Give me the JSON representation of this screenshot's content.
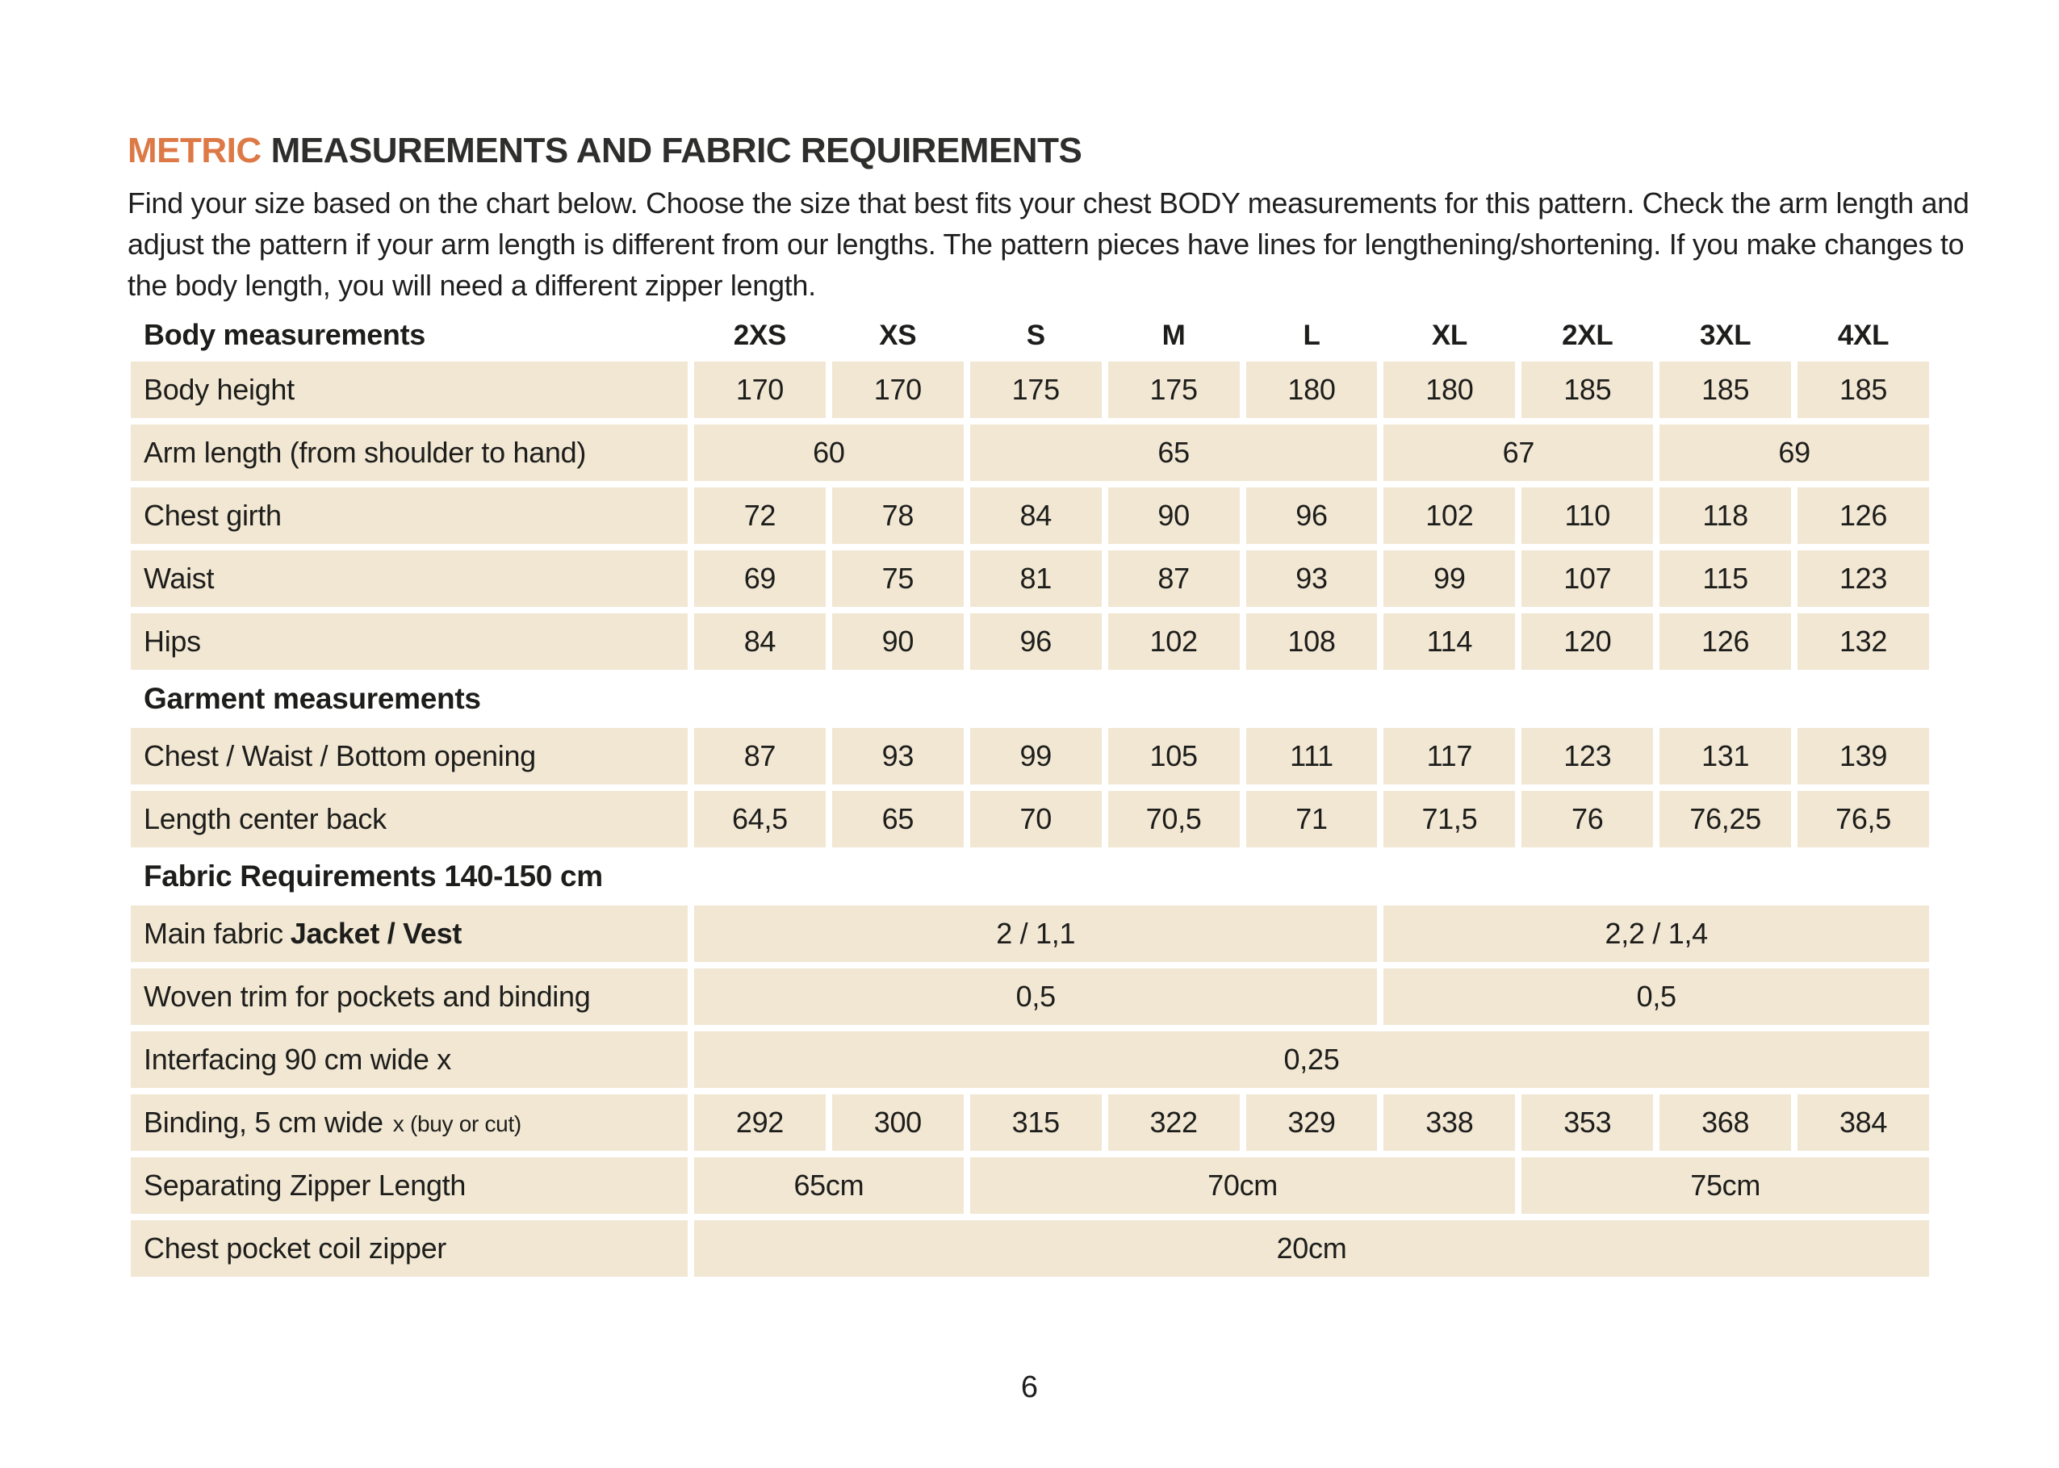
{
  "header": {
    "title_accent": "METRIC",
    "title_rest": "MEASUREMENTS AND FABRIC REQUIREMENTS",
    "intro": "Find your size based on the chart below. Choose the size that best fits your chest BODY measurements for this pattern. Check the arm length and adjust the pattern if your arm length is different from our lengths. The pattern pieces have lines for lengthening/shortening. If you make changes to the body length, you will need a different zipper length."
  },
  "colors": {
    "accent_orange": "#DD7946",
    "cell_beige": "#F1E7D3",
    "text": "#1d1d1b",
    "page_background": "#ffffff"
  },
  "table": {
    "size_headers": {
      "label": "Body measurements",
      "sizes": [
        "2XS",
        "XS",
        "S",
        "M",
        "L",
        "XL",
        "2XL",
        "3XL",
        "4XL"
      ]
    },
    "rows": [
      {
        "kind": "data",
        "label": "Body height",
        "cells": [
          {
            "span": 1,
            "text": "170"
          },
          {
            "span": 1,
            "text": "170"
          },
          {
            "span": 1,
            "text": "175"
          },
          {
            "span": 1,
            "text": "175"
          },
          {
            "span": 1,
            "text": "180"
          },
          {
            "span": 1,
            "text": "180"
          },
          {
            "span": 1,
            "text": "185"
          },
          {
            "span": 1,
            "text": "185"
          },
          {
            "span": 1,
            "text": "185"
          }
        ]
      },
      {
        "kind": "data",
        "label": "Arm length (from shoulder to hand)",
        "cells": [
          {
            "span": 2,
            "text": "60"
          },
          {
            "span": 3,
            "text": "65"
          },
          {
            "span": 2,
            "text": "67"
          },
          {
            "span": 2,
            "text": "69"
          }
        ]
      },
      {
        "kind": "data",
        "label": "Chest girth",
        "cells": [
          {
            "span": 1,
            "text": "72"
          },
          {
            "span": 1,
            "text": "78"
          },
          {
            "span": 1,
            "text": "84"
          },
          {
            "span": 1,
            "text": "90"
          },
          {
            "span": 1,
            "text": "96"
          },
          {
            "span": 1,
            "text": "102"
          },
          {
            "span": 1,
            "text": "110"
          },
          {
            "span": 1,
            "text": "118"
          },
          {
            "span": 1,
            "text": "126"
          }
        ]
      },
      {
        "kind": "data",
        "label": "Waist",
        "cells": [
          {
            "span": 1,
            "text": "69"
          },
          {
            "span": 1,
            "text": "75"
          },
          {
            "span": 1,
            "text": "81"
          },
          {
            "span": 1,
            "text": "87"
          },
          {
            "span": 1,
            "text": "93"
          },
          {
            "span": 1,
            "text": "99"
          },
          {
            "span": 1,
            "text": "107"
          },
          {
            "span": 1,
            "text": "115"
          },
          {
            "span": 1,
            "text": "123"
          }
        ]
      },
      {
        "kind": "data",
        "label": "Hips",
        "cells": [
          {
            "span": 1,
            "text": "84"
          },
          {
            "span": 1,
            "text": "90"
          },
          {
            "span": 1,
            "text": "96"
          },
          {
            "span": 1,
            "text": "102"
          },
          {
            "span": 1,
            "text": "108"
          },
          {
            "span": 1,
            "text": "114"
          },
          {
            "span": 1,
            "text": "120"
          },
          {
            "span": 1,
            "text": "126"
          },
          {
            "span": 1,
            "text": "132"
          }
        ]
      },
      {
        "kind": "section",
        "label": "Garment measurements"
      },
      {
        "kind": "data",
        "label": "Chest / Waist / Bottom opening",
        "cells": [
          {
            "span": 1,
            "text": "87"
          },
          {
            "span": 1,
            "text": "93"
          },
          {
            "span": 1,
            "text": "99"
          },
          {
            "span": 1,
            "text": "105"
          },
          {
            "span": 1,
            "text": "111"
          },
          {
            "span": 1,
            "text": "117"
          },
          {
            "span": 1,
            "text": "123"
          },
          {
            "span": 1,
            "text": "131"
          },
          {
            "span": 1,
            "text": "139"
          }
        ]
      },
      {
        "kind": "data",
        "label": "Length center back",
        "cells": [
          {
            "span": 1,
            "text": "64,5"
          },
          {
            "span": 1,
            "text": "65"
          },
          {
            "span": 1,
            "text": "70"
          },
          {
            "span": 1,
            "text": "70,5"
          },
          {
            "span": 1,
            "text": "71"
          },
          {
            "span": 1,
            "text": "71,5"
          },
          {
            "span": 1,
            "text": "76"
          },
          {
            "span": 1,
            "text": "76,25"
          },
          {
            "span": 1,
            "text": "76,5"
          }
        ]
      },
      {
        "kind": "section",
        "label": "Fabric Requirements 140-150 cm"
      },
      {
        "kind": "data",
        "label": "Main fabric",
        "label_bold": "Jacket / Vest",
        "cells": [
          {
            "span": 5,
            "text": "2 / 1,1"
          },
          {
            "span": 4,
            "text": "2,2 / 1,4"
          }
        ]
      },
      {
        "kind": "data",
        "label": "Woven trim for pockets and binding",
        "cells": [
          {
            "span": 5,
            "text": "0,5"
          },
          {
            "span": 4,
            "text": "0,5"
          }
        ]
      },
      {
        "kind": "data",
        "label": "Interfacing  90 cm wide x",
        "cells": [
          {
            "span": 9,
            "text": "0,25"
          }
        ]
      },
      {
        "kind": "data",
        "label": "Binding, 5 cm wide",
        "label_small": "x (buy or cut)",
        "cells": [
          {
            "span": 1,
            "text": "292"
          },
          {
            "span": 1,
            "text": "300"
          },
          {
            "span": 1,
            "text": "315"
          },
          {
            "span": 1,
            "text": "322"
          },
          {
            "span": 1,
            "text": "329"
          },
          {
            "span": 1,
            "text": "338"
          },
          {
            "span": 1,
            "text": "353"
          },
          {
            "span": 1,
            "text": "368"
          },
          {
            "span": 1,
            "text": "384"
          }
        ]
      },
      {
        "kind": "data",
        "label": "Separating Zipper Length",
        "cells": [
          {
            "span": 2,
            "text": "65cm"
          },
          {
            "span": 4,
            "text": "70cm"
          },
          {
            "span": 3,
            "text": "75cm"
          }
        ]
      },
      {
        "kind": "data",
        "label": "Chest pocket coil zipper",
        "cells": [
          {
            "span": 9,
            "text": "20cm"
          }
        ]
      }
    ]
  },
  "footer": {
    "page_number": "6"
  }
}
